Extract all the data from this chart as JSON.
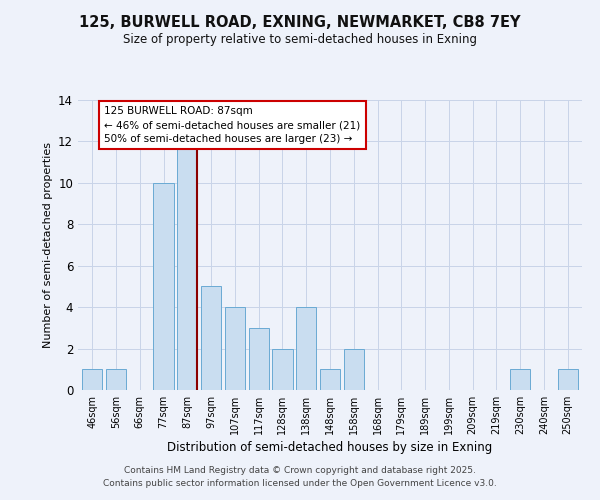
{
  "title": "125, BURWELL ROAD, EXNING, NEWMARKET, CB8 7EY",
  "subtitle": "Size of property relative to semi-detached houses in Exning",
  "xlabel": "Distribution of semi-detached houses by size in Exning",
  "ylabel": "Number of semi-detached properties",
  "bins": [
    "46sqm",
    "56sqm",
    "66sqm",
    "77sqm",
    "87sqm",
    "97sqm",
    "107sqm",
    "117sqm",
    "128sqm",
    "138sqm",
    "148sqm",
    "158sqm",
    "168sqm",
    "179sqm",
    "189sqm",
    "199sqm",
    "209sqm",
    "219sqm",
    "230sqm",
    "240sqm",
    "250sqm"
  ],
  "counts": [
    1,
    1,
    0,
    10,
    12,
    5,
    4,
    3,
    2,
    4,
    1,
    2,
    0,
    0,
    0,
    0,
    0,
    0,
    1,
    0,
    1
  ],
  "highlight_bin_index": 4,
  "bar_color": "#c9ddf0",
  "bar_edge_color": "#6aaad4",
  "highlight_line_color": "#8b0000",
  "annotation_line1": "125 BURWELL ROAD: 87sqm",
  "annotation_line2": "← 46% of semi-detached houses are smaller (21)",
  "annotation_line3": "50% of semi-detached houses are larger (23) →",
  "annotation_box_color": "#ffffff",
  "annotation_box_edge": "#cc0000",
  "ylim": [
    0,
    14
  ],
  "yticks": [
    0,
    2,
    4,
    6,
    8,
    10,
    12,
    14
  ],
  "footer_line1": "Contains HM Land Registry data © Crown copyright and database right 2025.",
  "footer_line2": "Contains public sector information licensed under the Open Government Licence v3.0.",
  "background_color": "#eef2fa",
  "grid_color": "#c8d4e8"
}
